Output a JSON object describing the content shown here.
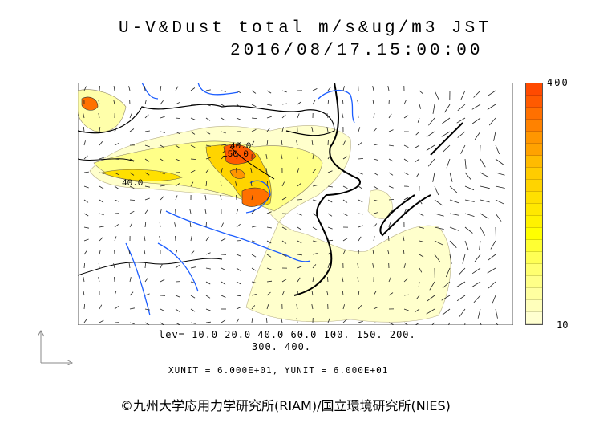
{
  "title": {
    "line1": "U-V&Dust total m/s&ug/m3 JST",
    "line2": "2016/08/17.15:00:00"
  },
  "colorbar": {
    "max_label": "400",
    "min_label": "10",
    "colors": [
      "#ff4a00",
      "#ff5a00",
      "#ff7000",
      "#ff8200",
      "#ff9600",
      "#ffa200",
      "#ffbb00",
      "#ffcc00",
      "#ffd400",
      "#ffe000",
      "#ffe800",
      "#fff200",
      "#ffff00",
      "#ffff33",
      "#ffff55",
      "#ffff70",
      "#ffff88",
      "#ffffa0",
      "#ffffbb",
      "#ffffd0"
    ]
  },
  "map": {
    "contour_labels": [
      "40.0",
      "150.0",
      "40.0"
    ],
    "land_color": "#000000",
    "river_color": "#1a5cff"
  },
  "legend": {
    "levels_line1": "lev= 10.0 20.0 40.0 60.0 100. 150. 200.",
    "levels_line2": "300. 400.",
    "units": "XUNIT = 6.000E+01, YUNIT = 6.000E+01"
  },
  "credit": "©九州大学応用力学研究所(RIAM)/国立環境研究所(NIES)"
}
